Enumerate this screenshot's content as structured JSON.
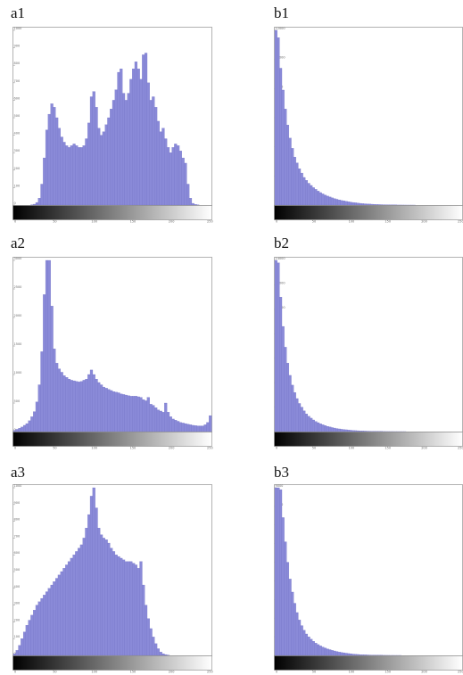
{
  "figure": {
    "panels": [
      {
        "label": "a1"
      },
      {
        "label": "b1"
      },
      {
        "label": "a2"
      },
      {
        "label": "b2"
      },
      {
        "label": "a3"
      },
      {
        "label": "b3"
      }
    ]
  },
  "colors": {
    "bar_fill": "#8a8ad8",
    "bar_stroke": "#6e6ec4",
    "frame": "#a0a0a0"
  },
  "chart_data": [
    {
      "id": "a1",
      "type": "bar",
      "title": "a1",
      "xlim": [
        0,
        255
      ],
      "ylim": [
        0,
        1000
      ],
      "x_ticks": [
        "0",
        "50",
        "100",
        "150",
        "200",
        "250"
      ],
      "y_ticks": [
        "0",
        "100",
        "200",
        "300",
        "400",
        "500",
        "600",
        "700",
        "800",
        "900",
        "1000"
      ],
      "grayscale_bar": true,
      "values": [
        0,
        0,
        0,
        0,
        0,
        0,
        0,
        2,
        5,
        15,
        40,
        120,
        270,
        430,
        520,
        580,
        560,
        500,
        440,
        390,
        360,
        340,
        330,
        340,
        350,
        340,
        330,
        330,
        340,
        380,
        470,
        620,
        650,
        560,
        440,
        400,
        420,
        460,
        500,
        550,
        600,
        660,
        760,
        780,
        640,
        600,
        640,
        720,
        780,
        820,
        780,
        720,
        860,
        870,
        700,
        600,
        620,
        560,
        480,
        420,
        440,
        380,
        330,
        300,
        330,
        350,
        340,
        310,
        270,
        240,
        120,
        40,
        10,
        4,
        1,
        0,
        0,
        0,
        0,
        0
      ],
      "series": [
        {
          "name": "",
          "values": "values"
        }
      ]
    },
    {
      "id": "b1",
      "type": "bar",
      "title": "b1",
      "xlim": [
        0,
        255
      ],
      "ylim": [
        0,
        12000
      ],
      "x_ticks": [
        "0",
        "50",
        "100",
        "150",
        "200",
        "250"
      ],
      "y_ticks": [
        "0",
        "2000",
        "4000",
        "6000",
        "8000",
        "10000",
        "12000"
      ],
      "grayscale_bar": true,
      "values": [
        12000,
        11500,
        9400,
        7900,
        6600,
        5500,
        4600,
        3900,
        3300,
        2900,
        2500,
        2200,
        1900,
        1700,
        1500,
        1350,
        1200,
        1080,
        960,
        860,
        770,
        690,
        620,
        560,
        500,
        450,
        400,
        360,
        320,
        290,
        260,
        230,
        200,
        180,
        160,
        140,
        120,
        100,
        90,
        80,
        70,
        60,
        50,
        40,
        35,
        30,
        25,
        20,
        15,
        12,
        10,
        8,
        6,
        5,
        4,
        3,
        2,
        2,
        1,
        1,
        0,
        0,
        0,
        0,
        0,
        0,
        0,
        0,
        0,
        0,
        0,
        0,
        0,
        0,
        0,
        0,
        0,
        0,
        0,
        0
      ],
      "series": [
        {
          "name": "",
          "values": "values"
        }
      ]
    },
    {
      "id": "a2",
      "type": "bar",
      "title": "a2",
      "xlim": [
        0,
        255
      ],
      "ylim": [
        0,
        3000
      ],
      "x_ticks": [
        "0",
        "50",
        "100",
        "150",
        "200",
        "250"
      ],
      "y_ticks": [
        "0",
        "500",
        "1000",
        "1500",
        "2000",
        "2500",
        "3000"
      ],
      "grayscale_bar": true,
      "values": [
        20,
        40,
        60,
        80,
        110,
        140,
        190,
        260,
        350,
        520,
        820,
        1400,
        2400,
        3000,
        3000,
        2200,
        1450,
        1200,
        1100,
        1040,
        980,
        950,
        920,
        900,
        890,
        880,
        870,
        880,
        900,
        920,
        1000,
        1080,
        1000,
        920,
        860,
        820,
        780,
        760,
        740,
        720,
        700,
        690,
        680,
        660,
        650,
        640,
        630,
        620,
        620,
        620,
        610,
        600,
        560,
        540,
        600,
        480,
        460,
        420,
        380,
        360,
        340,
        500,
        340,
        260,
        220,
        200,
        180,
        160,
        150,
        140,
        130,
        120,
        110,
        105,
        100,
        100,
        100,
        120,
        160,
        280
      ],
      "series": [
        {
          "name": "",
          "values": "values"
        }
      ]
    },
    {
      "id": "b2",
      "type": "bar",
      "title": "b2",
      "xlim": [
        0,
        255
      ],
      "ylim": [
        0,
        14000
      ],
      "x_ticks": [
        "0",
        "50",
        "100",
        "150",
        "200",
        "250"
      ],
      "y_ticks": [
        "0",
        "2000",
        "4000",
        "6000",
        "8000",
        "10000",
        "12000",
        "14000"
      ],
      "grayscale_bar": true,
      "values": [
        14000,
        13800,
        11000,
        8600,
        6900,
        5600,
        4600,
        3800,
        3200,
        2700,
        2300,
        2000,
        1700,
        1450,
        1250,
        1100,
        950,
        830,
        730,
        640,
        560,
        490,
        430,
        380,
        330,
        290,
        250,
        220,
        190,
        170,
        150,
        130,
        110,
        95,
        80,
        70,
        60,
        50,
        42,
        35,
        30,
        25,
        20,
        16,
        13,
        10,
        8,
        6,
        5,
        4,
        3,
        2,
        2,
        1,
        1,
        1,
        0,
        0,
        0,
        0,
        0,
        0,
        0,
        0,
        0,
        0,
        0,
        0,
        0,
        0,
        0,
        0,
        0,
        0,
        0,
        0,
        0,
        0,
        0,
        0
      ],
      "series": [
        {
          "name": "",
          "values": "values"
        }
      ]
    },
    {
      "id": "a3",
      "type": "bar",
      "title": "a3",
      "xlim": [
        0,
        255
      ],
      "ylim": [
        0,
        1000
      ],
      "x_ticks": [
        "0",
        "50",
        "100",
        "150",
        "200",
        "250"
      ],
      "y_ticks": [
        "0",
        "100",
        "200",
        "300",
        "400",
        "500",
        "600",
        "700",
        "800",
        "900",
        "1000"
      ],
      "grayscale_bar": true,
      "values": [
        10,
        30,
        60,
        100,
        140,
        180,
        210,
        240,
        270,
        300,
        320,
        340,
        360,
        380,
        400,
        420,
        440,
        460,
        480,
        500,
        520,
        540,
        560,
        580,
        600,
        620,
        640,
        660,
        700,
        760,
        840,
        950,
        1000,
        880,
        760,
        720,
        700,
        690,
        670,
        640,
        620,
        600,
        590,
        580,
        570,
        560,
        560,
        560,
        550,
        540,
        520,
        560,
        420,
        300,
        220,
        160,
        110,
        70,
        40,
        20,
        10,
        5,
        2,
        0,
        0,
        0,
        0,
        0,
        0,
        0,
        0,
        0,
        0,
        0,
        0,
        0,
        0,
        0,
        0,
        0
      ],
      "series": [
        {
          "name": "",
          "values": "values"
        }
      ]
    },
    {
      "id": "b3",
      "type": "bar",
      "title": "b3",
      "xlim": [
        0,
        255
      ],
      "ylim": [
        0,
        9000
      ],
      "x_ticks": [
        "0",
        "50",
        "100",
        "150",
        "200",
        "250"
      ],
      "y_ticks": [
        "0",
        "1000",
        "2000",
        "3000",
        "4000",
        "5000",
        "6000",
        "7000",
        "8000",
        "9000"
      ],
      "grayscale_bar": true,
      "values": [
        9000,
        9000,
        8900,
        7400,
        6100,
        5000,
        4100,
        3400,
        2800,
        2300,
        1900,
        1600,
        1350,
        1150,
        1000,
        870,
        760,
        660,
        580,
        510,
        450,
        400,
        350,
        310,
        270,
        240,
        210,
        180,
        160,
        140,
        120,
        100,
        85,
        70,
        60,
        50,
        42,
        35,
        30,
        25,
        20,
        16,
        13,
        10,
        8,
        6,
        5,
        4,
        3,
        2,
        2,
        1,
        1,
        1,
        0,
        0,
        0,
        0,
        0,
        0,
        0,
        0,
        0,
        0,
        0,
        0,
        0,
        0,
        0,
        0,
        0,
        0,
        0,
        0,
        0,
        0,
        0,
        0,
        0,
        0
      ],
      "series": [
        {
          "name": "",
          "values": "values"
        }
      ]
    }
  ]
}
